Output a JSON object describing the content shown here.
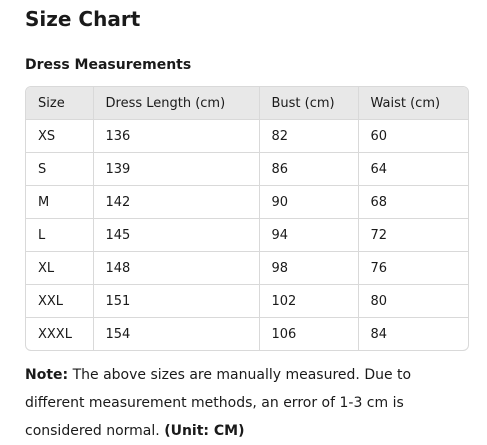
{
  "title": "Size Chart",
  "subtitle": "Dress Measurements",
  "table": {
    "headers": [
      "Size",
      "Dress Length (cm)",
      "Bust (cm)",
      "Waist (cm)"
    ],
    "rows": [
      [
        "XS",
        "136",
        "82",
        "60"
      ],
      [
        "S",
        "139",
        "86",
        "64"
      ],
      [
        "M",
        "142",
        "90",
        "68"
      ],
      [
        "L",
        "145",
        "94",
        "72"
      ],
      [
        "XL",
        "148",
        "98",
        "76"
      ],
      [
        "XXL",
        "151",
        "102",
        "80"
      ],
      [
        "XXXL",
        "154",
        "106",
        "84"
      ]
    ]
  },
  "note": {
    "label": "Note:",
    "text": " The above sizes are manually measured. Due to different measurement methods, an error of 1-3 cm is considered normal. ",
    "unit": "(Unit: CM)"
  }
}
